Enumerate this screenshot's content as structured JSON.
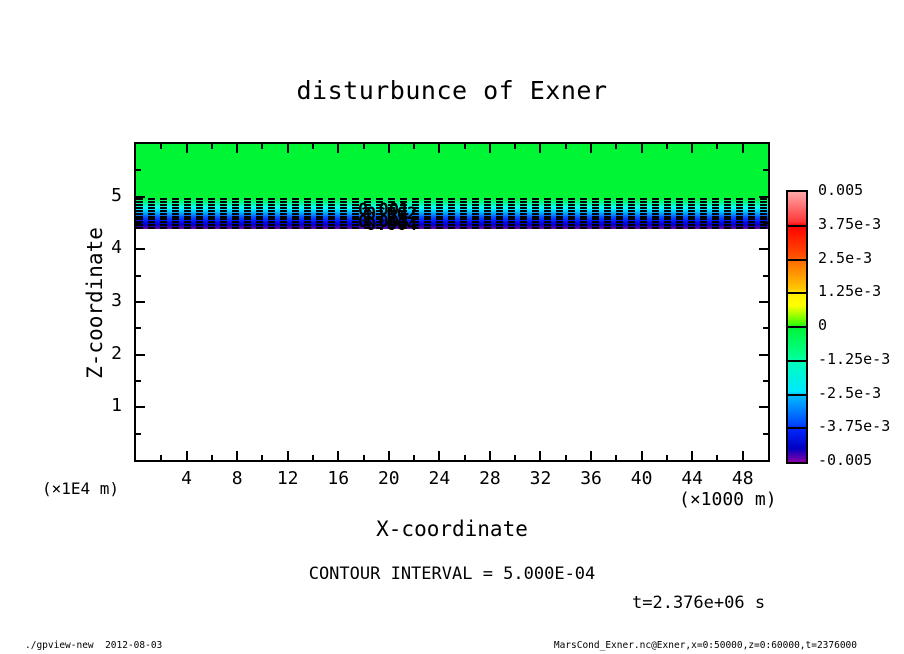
{
  "header": {
    "title": "disturbunce of Exner"
  },
  "chart_data": {
    "type": "heatmap",
    "title": "disturbunce of Exner",
    "xlabel": "X-coordinate",
    "ylabel": "Z-coordinate",
    "x_unit_factor": "(×1000 m)",
    "y_unit_factor": "(×1E4 m)",
    "xlim": [
      0,
      50
    ],
    "ylim": [
      0,
      6
    ],
    "x_major_ticks": [
      4,
      8,
      12,
      16,
      20,
      24,
      28,
      32,
      36,
      40,
      44,
      48
    ],
    "x_minor_step": 2,
    "y_major_ticks": [
      1,
      2,
      3,
      4,
      5
    ],
    "y_minor_step": 0.5,
    "grid": false,
    "contour_interval_text": "CONTOUR INTERVAL = 5.000E-04",
    "time_text": "t=2.376e+06 s",
    "contour_labels": [
      "0.001",
      "0.002",
      "0.003",
      "0.004"
    ],
    "contour_label_cluster_x": 20,
    "field": {
      "description": "Horizontally uniform field: value ~0 (green tone) above z~4.97e4 m; sharp negative layer between z~4.38e4 and 4.97e4 m descending from 0 to ~ -0.005 (dashed contours every 5.000E-04); untoned (white) below z~4.38e4 m.",
      "zero_fill_color": "#00f535",
      "band_top_z": 4.97,
      "band_bottom_z": 4.38,
      "gradient_stops": [
        {
          "p": 0.0,
          "c": "#00f535"
        },
        {
          "p": 0.18,
          "c": "#00ffa0"
        },
        {
          "p": 0.32,
          "c": "#00ffff"
        },
        {
          "p": 0.5,
          "c": "#00a0ff"
        },
        {
          "p": 0.62,
          "c": "#0050ff"
        },
        {
          "p": 0.74,
          "c": "#0018ff"
        },
        {
          "p": 0.85,
          "c": "#0000c8"
        },
        {
          "p": 0.94,
          "c": "#3800a8"
        },
        {
          "p": 1.0,
          "c": "#7800a8"
        }
      ],
      "contour_line_z": [
        4.95,
        4.9,
        4.84,
        4.79,
        4.73,
        4.68,
        4.62,
        4.57,
        4.51,
        4.46,
        4.4
      ],
      "bands": [
        {
          "z_top": 6.0,
          "z_bottom": 4.97,
          "value": "~0"
        },
        {
          "z_top": 4.97,
          "z_bottom": 4.38,
          "value": "0 to -0.005"
        },
        {
          "z_top": 4.38,
          "z_bottom": 0.0,
          "value": "untoned (white)"
        }
      ]
    },
    "colorbar": {
      "labels": [
        "0.005",
        "3.75e-3",
        "2.5e-3",
        "1.25e-3",
        "0",
        "-1.25e-3",
        "-2.5e-3",
        "-3.75e-3",
        "-0.005"
      ],
      "gradient_stops": [
        {
          "p": 0.0,
          "c": "#ffa8a8"
        },
        {
          "p": 0.11,
          "c": "#ff3838"
        },
        {
          "p": 0.125,
          "c": "#ff0000"
        },
        {
          "p": 0.24,
          "c": "#ff5000"
        },
        {
          "p": 0.25,
          "c": "#ff6800"
        },
        {
          "p": 0.36,
          "c": "#ffc800"
        },
        {
          "p": 0.375,
          "c": "#ffee00"
        },
        {
          "p": 0.42,
          "c": "#ffff00"
        },
        {
          "p": 0.49,
          "c": "#40ff00"
        },
        {
          "p": 0.5,
          "c": "#00f535"
        },
        {
          "p": 0.615,
          "c": "#00ff98"
        },
        {
          "p": 0.625,
          "c": "#00ffb8"
        },
        {
          "p": 0.74,
          "c": "#00e8ff"
        },
        {
          "p": 0.75,
          "c": "#00c0ff"
        },
        {
          "p": 0.86,
          "c": "#0048ff"
        },
        {
          "p": 0.875,
          "c": "#0028ff"
        },
        {
          "p": 0.95,
          "c": "#0000c0"
        },
        {
          "p": 1.0,
          "c": "#8800a8"
        }
      ]
    }
  },
  "footer": {
    "left": "./gpview-new  2012-08-03",
    "right": "MarsCond_Exner.nc@Exner,x=0:50000,z=0:60000,t=2376000"
  }
}
